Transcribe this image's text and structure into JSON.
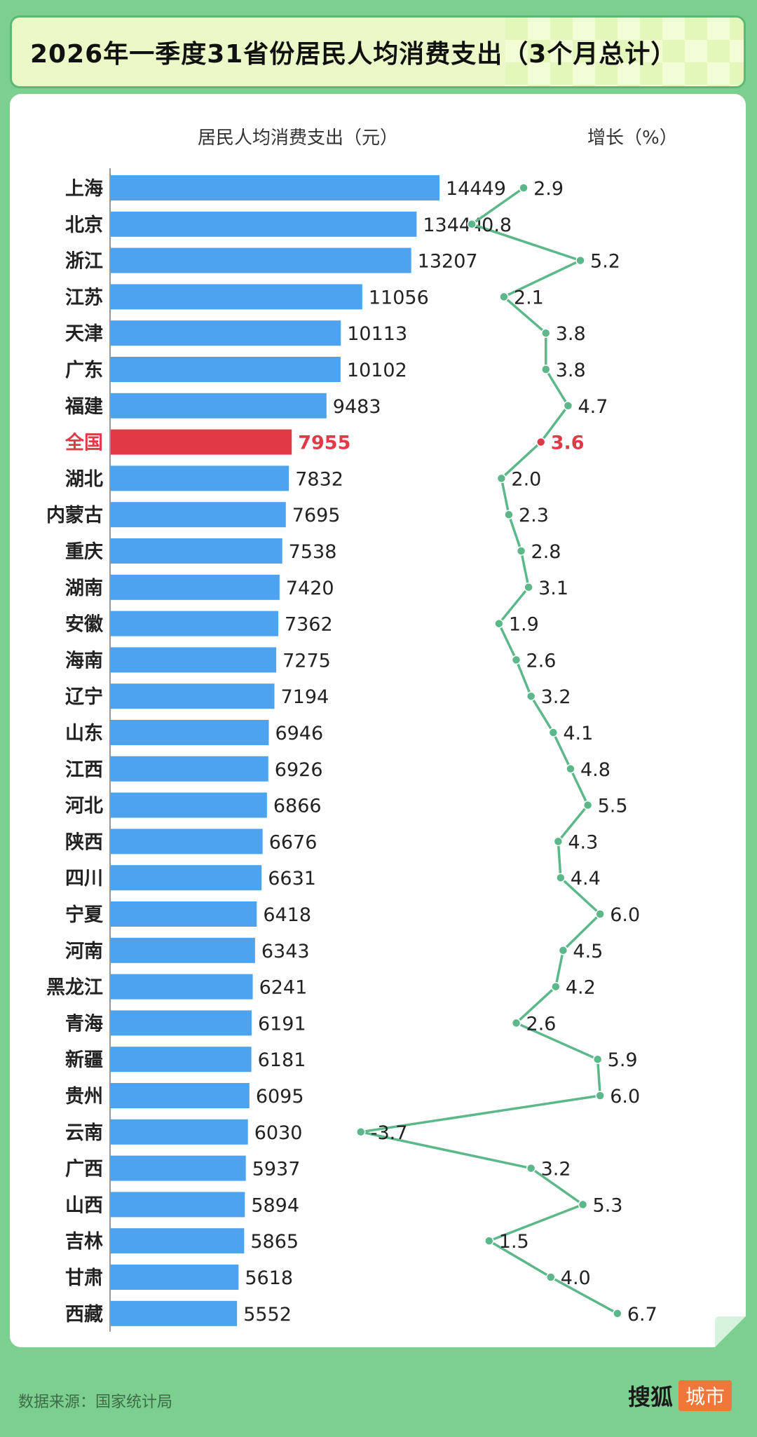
{
  "title": "2026年一季度31省份居民人均消费支出（3个月总计）",
  "column_headers": {
    "spending": "居民人均消费支出（元）",
    "growth": "增长（%）"
  },
  "footer": {
    "source": "数据来源：国家统计局",
    "brand_name": "搜狐",
    "brand_tag": "城市"
  },
  "colors": {
    "bar": "#4da3ee",
    "highlight": "#e03a47",
    "line": "#5cb88a",
    "frame": "#7dcf8f"
  },
  "chart_data": [
    {
      "type": "bar",
      "orientation": "horizontal",
      "title": "",
      "categories": [
        "上海",
        "北京",
        "浙江",
        "江苏",
        "天津",
        "广东",
        "福建",
        "全国",
        "湖北",
        "内蒙古",
        "重庆",
        "湖南",
        "安徽",
        "海南",
        "辽宁",
        "山东",
        "江西",
        "河北",
        "陕西",
        "四川",
        "宁夏",
        "河南",
        "黑龙江",
        "青海",
        "新疆",
        "贵州",
        "云南",
        "广西",
        "山西",
        "吉林",
        "甘肃",
        "西藏"
      ],
      "values": [
        14449,
        13444,
        13207,
        11056,
        10113,
        10102,
        9483,
        7955,
        7832,
        7695,
        7538,
        7420,
        7362,
        7275,
        7194,
        6946,
        6926,
        6866,
        6676,
        6631,
        6418,
        6343,
        6241,
        6191,
        6181,
        6095,
        6030,
        5937,
        5894,
        5865,
        5618,
        5552
      ],
      "highlight_category": "全国",
      "xlim": [
        0,
        14449
      ]
    },
    {
      "type": "line",
      "categories": [
        "上海",
        "北京",
        "浙江",
        "江苏",
        "天津",
        "广东",
        "福建",
        "全国",
        "湖北",
        "内蒙古",
        "重庆",
        "湖南",
        "安徽",
        "海南",
        "辽宁",
        "山东",
        "江西",
        "河北",
        "陕西",
        "四川",
        "宁夏",
        "河南",
        "黑龙江",
        "青海",
        "新疆",
        "贵州",
        "云南",
        "广西",
        "山西",
        "吉林",
        "甘肃",
        "西藏"
      ],
      "values": [
        2.9,
        0.8,
        5.2,
        2.1,
        3.8,
        3.8,
        4.7,
        3.6,
        2.0,
        2.3,
        2.8,
        3.1,
        1.9,
        2.6,
        3.2,
        4.1,
        4.8,
        5.5,
        4.3,
        4.4,
        6.0,
        4.5,
        4.2,
        2.6,
        5.9,
        6.0,
        -3.7,
        3.2,
        5.3,
        1.5,
        4.0,
        6.7
      ],
      "labels": [
        "2.9",
        "0.8",
        "5.2",
        "2.1",
        "3.8",
        "3.8",
        "4.7",
        "3.6",
        "2.0",
        "2.3",
        "2.8",
        "3.1",
        "1.9",
        "2.6",
        "3.2",
        "4.1",
        "4.8",
        "5.5",
        "4.3",
        "4.4",
        "6.0",
        "4.5",
        "4.2",
        "2.6",
        "5.9",
        "6.0",
        "-3.7",
        "3.2",
        "5.3",
        "1.5",
        "4.0",
        "6.7"
      ],
      "highlight_category": "全国",
      "xlim": [
        -3.7,
        6.7
      ]
    }
  ]
}
